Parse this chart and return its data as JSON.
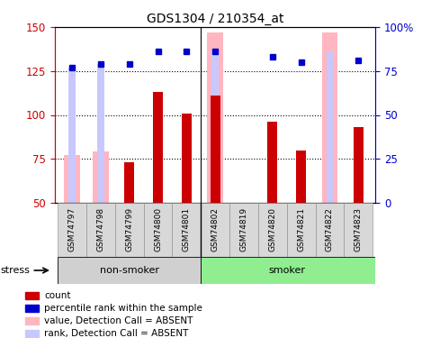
{
  "title": "GDS1304 / 210354_at",
  "samples": [
    "GSM74797",
    "GSM74798",
    "GSM74799",
    "GSM74800",
    "GSM74801",
    "GSM74802",
    "GSM74819",
    "GSM74820",
    "GSM74821",
    "GSM74822",
    "GSM74823"
  ],
  "count_values": [
    null,
    null,
    73,
    113,
    101,
    111,
    null,
    96,
    80,
    null,
    93
  ],
  "percentile_rank": [
    77,
    79,
    79,
    86,
    86,
    86,
    null,
    83,
    80,
    null,
    81
  ],
  "absent_value": [
    77,
    79,
    null,
    null,
    null,
    147,
    null,
    null,
    null,
    147,
    null
  ],
  "absent_rank": [
    77,
    79,
    null,
    null,
    null,
    86,
    null,
    null,
    null,
    86,
    null
  ],
  "ylim_left": [
    50,
    150
  ],
  "ylim_right": [
    0,
    100
  ],
  "yticks_left": [
    50,
    75,
    100,
    125,
    150
  ],
  "yticks_right": [
    0,
    25,
    50,
    75,
    100
  ],
  "ytick_labels_right": [
    "0",
    "25",
    "50",
    "75",
    "100%"
  ],
  "left_axis_color": "#cc0000",
  "right_axis_color": "#0000cc",
  "count_color": "#cc0000",
  "percentile_color": "#0000cc",
  "absent_value_color": "#ffb6c1",
  "absent_rank_color": "#c8c8ff",
  "grid_color": "black",
  "legend_items": [
    {
      "label": "count",
      "color": "#cc0000",
      "marker": "s"
    },
    {
      "label": "percentile rank within the sample",
      "color": "#0000cc",
      "marker": "s"
    },
    {
      "label": "value, Detection Call = ABSENT",
      "color": "#ffb6c1",
      "marker": "s"
    },
    {
      "label": "rank, Detection Call = ABSENT",
      "color": "#c8c8ff",
      "marker": "s"
    }
  ],
  "stress_label": "stress",
  "nonsmoker_label": "non-smoker",
  "smoker_label": "smoker",
  "nonsmoker_indices": [
    0,
    1,
    2,
    3,
    4
  ],
  "smoker_indices": [
    5,
    6,
    7,
    8,
    9,
    10
  ],
  "nonsmoker_bg": "#d0d0d0",
  "smoker_bg": "#90EE90",
  "group_box_bg": "#90EE90"
}
